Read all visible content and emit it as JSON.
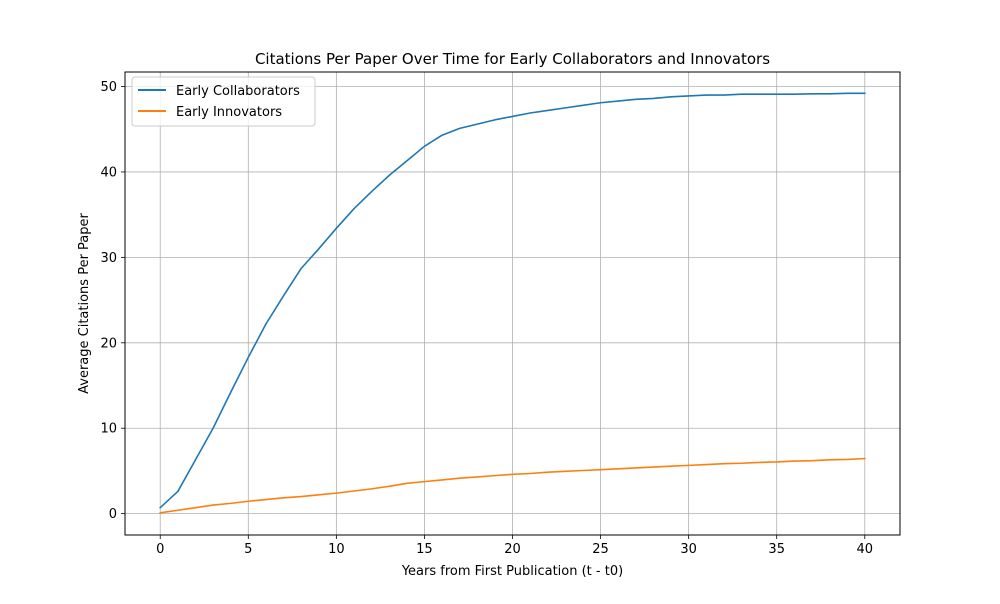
{
  "chart_data": {
    "type": "line",
    "title": "Citations Per Paper Over Time for Early Collaborators and Innovators",
    "xlabel": "Years from First Publication (t - t0)",
    "ylabel": "Average Citations Per Paper",
    "xlim": [
      -2,
      42
    ],
    "ylim": [
      -2.5,
      51.7
    ],
    "xticks": [
      0,
      5,
      10,
      15,
      20,
      25,
      30,
      35,
      40
    ],
    "yticks": [
      0,
      10,
      20,
      30,
      40,
      50
    ],
    "grid": true,
    "legend_position": "top-left",
    "x": [
      0,
      1,
      2,
      3,
      4,
      5,
      6,
      7,
      8,
      9,
      10,
      11,
      12,
      13,
      14,
      15,
      16,
      17,
      18,
      19,
      20,
      21,
      22,
      23,
      24,
      25,
      26,
      27,
      28,
      29,
      30,
      31,
      32,
      33,
      34,
      35,
      36,
      37,
      38,
      39,
      40
    ],
    "series": [
      {
        "name": "Early Collaborators",
        "color": "#1f77b4",
        "values": [
          0.7,
          2.6,
          6.3,
          10.0,
          14.2,
          18.3,
          22.2,
          25.5,
          28.7,
          31.0,
          33.4,
          35.7,
          37.7,
          39.6,
          41.3,
          43.0,
          44.3,
          45.1,
          45.6,
          46.1,
          46.5,
          46.9,
          47.2,
          47.5,
          47.8,
          48.1,
          48.3,
          48.5,
          48.6,
          48.8,
          48.9,
          49.0,
          49.0,
          49.1,
          49.1,
          49.1,
          49.1,
          49.15,
          49.15,
          49.2,
          49.2
        ]
      },
      {
        "name": "Early Innovators",
        "color": "#ff7f0e",
        "values": [
          0.1,
          0.4,
          0.7,
          1.0,
          1.2,
          1.45,
          1.65,
          1.85,
          2.0,
          2.2,
          2.4,
          2.65,
          2.9,
          3.2,
          3.55,
          3.75,
          3.95,
          4.15,
          4.3,
          4.45,
          4.6,
          4.7,
          4.85,
          4.95,
          5.05,
          5.15,
          5.25,
          5.35,
          5.45,
          5.55,
          5.65,
          5.75,
          5.85,
          5.9,
          6.0,
          6.05,
          6.15,
          6.2,
          6.3,
          6.35,
          6.45
        ]
      }
    ]
  }
}
